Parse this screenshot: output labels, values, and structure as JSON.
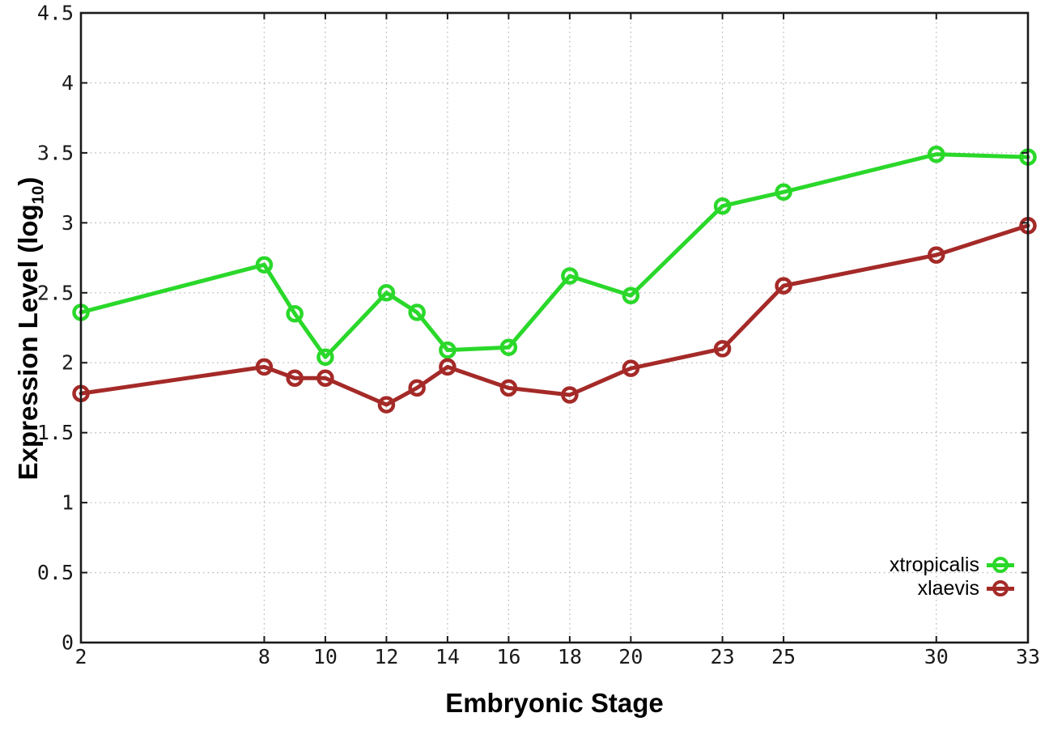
{
  "chart_data": {
    "type": "line",
    "title": "",
    "xlabel": "Embryonic Stage",
    "ylabel": {
      "text": "Expression Level (log",
      "sub": "10",
      "suffix": ")"
    },
    "x": [
      2,
      8,
      9,
      10,
      12,
      13,
      14,
      16,
      18,
      20,
      23,
      25,
      30,
      33
    ],
    "series": [
      {
        "name": "xtropicalis",
        "color": "#2ad82a",
        "marker": "open-circle",
        "values": [
          2.36,
          2.7,
          2.35,
          2.04,
          2.5,
          2.36,
          2.09,
          2.11,
          2.62,
          2.48,
          3.12,
          3.22,
          3.49,
          3.47
        ]
      },
      {
        "name": "xlaevis",
        "color": "#a42a28",
        "marker": "open-circle",
        "values": [
          1.78,
          1.97,
          1.89,
          1.89,
          1.7,
          1.82,
          1.97,
          1.82,
          1.77,
          1.96,
          2.1,
          2.55,
          2.77,
          2.98
        ]
      }
    ],
    "xlim": [
      2,
      33
    ],
    "ylim": [
      0,
      4.5
    ],
    "xticks": {
      "values": [
        2,
        8,
        10,
        12,
        14,
        16,
        18,
        20,
        23,
        25,
        30,
        33
      ],
      "labels": [
        "2",
        "8",
        "10",
        "12",
        "14",
        "16",
        "18",
        "20",
        "23",
        "25",
        "30",
        "33"
      ]
    },
    "yticks": {
      "values": [
        0,
        0.5,
        1,
        1.5,
        2,
        2.5,
        3,
        3.5,
        4,
        4.5
      ],
      "labels": [
        "0",
        "0.5",
        "1",
        "1.5",
        "2",
        "2.5",
        "3",
        "3.5",
        "4",
        "4.5"
      ]
    },
    "grid": "dotted",
    "legend_position": "inside-bottom-right"
  },
  "colors": {
    "background": "#ffffff",
    "axis": "#1a1a1a",
    "grid": "#b8b8b8",
    "tick_text": "#1a1a1a"
  }
}
